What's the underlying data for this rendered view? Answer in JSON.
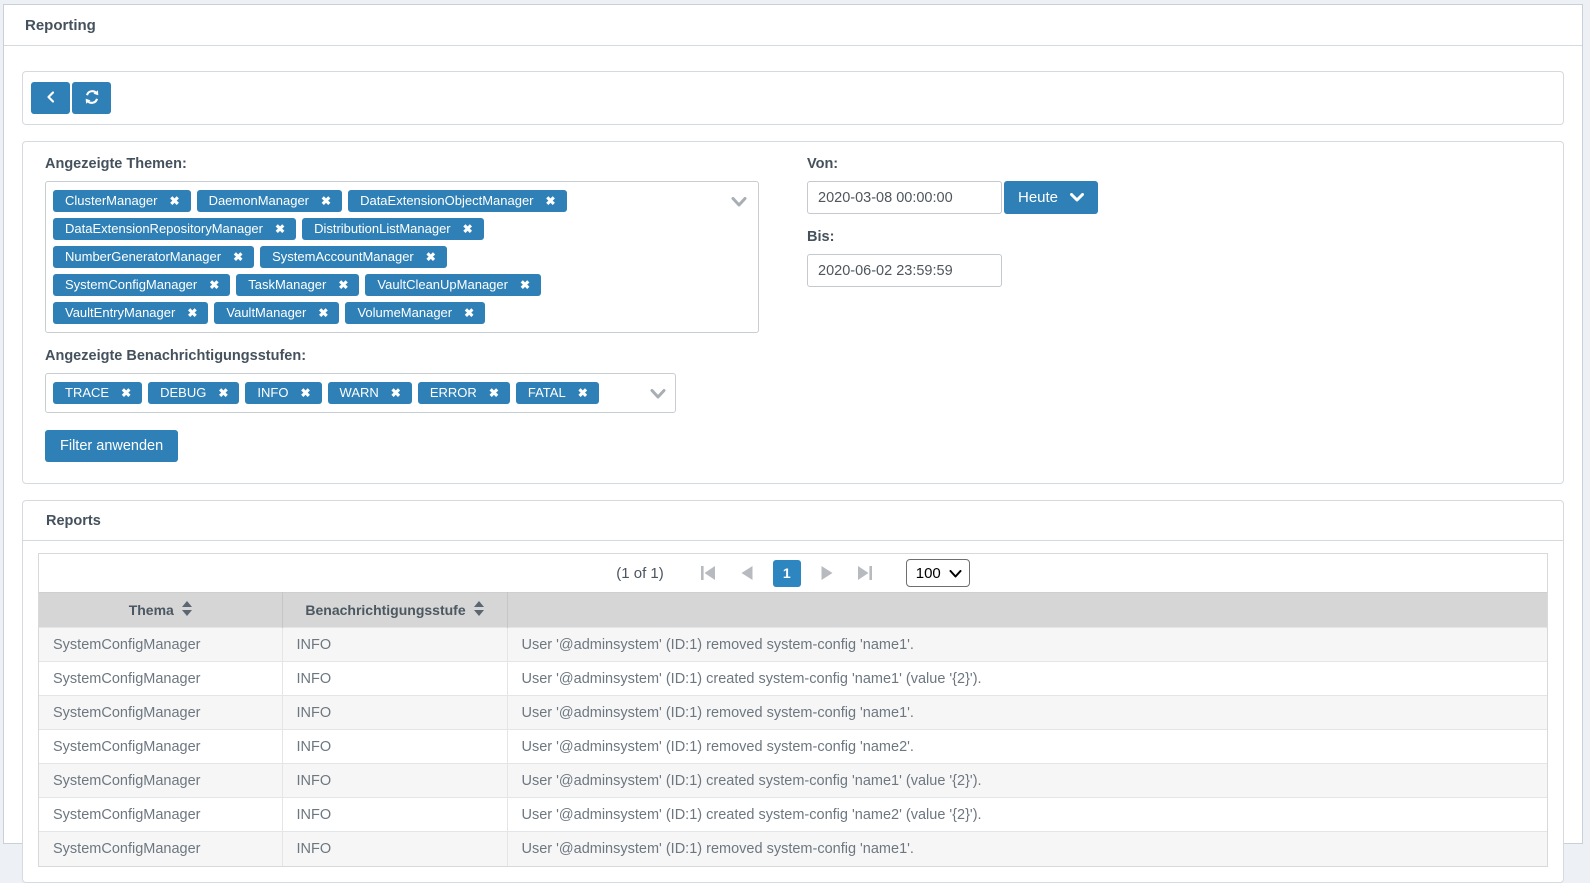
{
  "header": {
    "title": "Reporting"
  },
  "toolbar": {
    "buttons": [
      {
        "name": "back",
        "icon": "chevron-left-icon"
      },
      {
        "name": "refresh",
        "icon": "refresh-icon"
      }
    ]
  },
  "filters": {
    "themes_label": "Angezeigte Themen:",
    "themes": [
      "ClusterManager",
      "DaemonManager",
      "DataExtensionObjectManager",
      "DataExtensionRepositoryManager",
      "DistributionListManager",
      "NumberGeneratorManager",
      "SystemAccountManager",
      "SystemConfigManager",
      "TaskManager",
      "VaultCleanUpManager",
      "VaultEntryManager",
      "VaultManager",
      "VolumeManager"
    ],
    "levels_label": "Angezeigte Benachrichtigungsstufen:",
    "levels": [
      "TRACE",
      "DEBUG",
      "INFO",
      "WARN",
      "ERROR",
      "FATAL"
    ],
    "from_label": "Von:",
    "from_value": "2020-03-08 00:00:00",
    "today_button_label": "Heute",
    "to_label": "Bis:",
    "to_value": "2020-06-02 23:59:59",
    "apply_button_label": "Filter anwenden"
  },
  "reports": {
    "panel_title": "Reports",
    "paginator": {
      "summary": "(1 of 1)",
      "active_page": "1",
      "page_size": "100"
    },
    "table": {
      "columns": [
        "Thema",
        "Benachrichtigungsstufe",
        ""
      ],
      "rows": [
        {
          "thema": "SystemConfigManager",
          "stufe": "INFO",
          "message": "User '@adminsystem' (ID:1) removed system-config 'name1'."
        },
        {
          "thema": "SystemConfigManager",
          "stufe": "INFO",
          "message": "User '@adminsystem' (ID:1) created system-config 'name1' (value '{2}')."
        },
        {
          "thema": "SystemConfigManager",
          "stufe": "INFO",
          "message": "User '@adminsystem' (ID:1) removed system-config 'name1'."
        },
        {
          "thema": "SystemConfigManager",
          "stufe": "INFO",
          "message": "User '@adminsystem' (ID:1) removed system-config 'name2'."
        },
        {
          "thema": "SystemConfigManager",
          "stufe": "INFO",
          "message": "User '@adminsystem' (ID:1) created system-config 'name1' (value '{2}')."
        },
        {
          "thema": "SystemConfigManager",
          "stufe": "INFO",
          "message": "User '@adminsystem' (ID:1) created system-config 'name2' (value '{2}')."
        },
        {
          "thema": "SystemConfigManager",
          "stufe": "INFO",
          "message": "User '@adminsystem' (ID:1) removed system-config 'name1'."
        }
      ]
    }
  },
  "ui": {
    "close_glyph": "✖",
    "icons": [
      "chevron-left-icon",
      "refresh-icon",
      "chevron-down-icon",
      "sort-icon",
      "first-page-icon",
      "prev-page-icon",
      "next-page-icon",
      "last-page-icon"
    ],
    "colors": {
      "accent": "#2e80b6",
      "active_page": "#2e86c1",
      "header_row_bg": "#d6d6d6"
    }
  }
}
